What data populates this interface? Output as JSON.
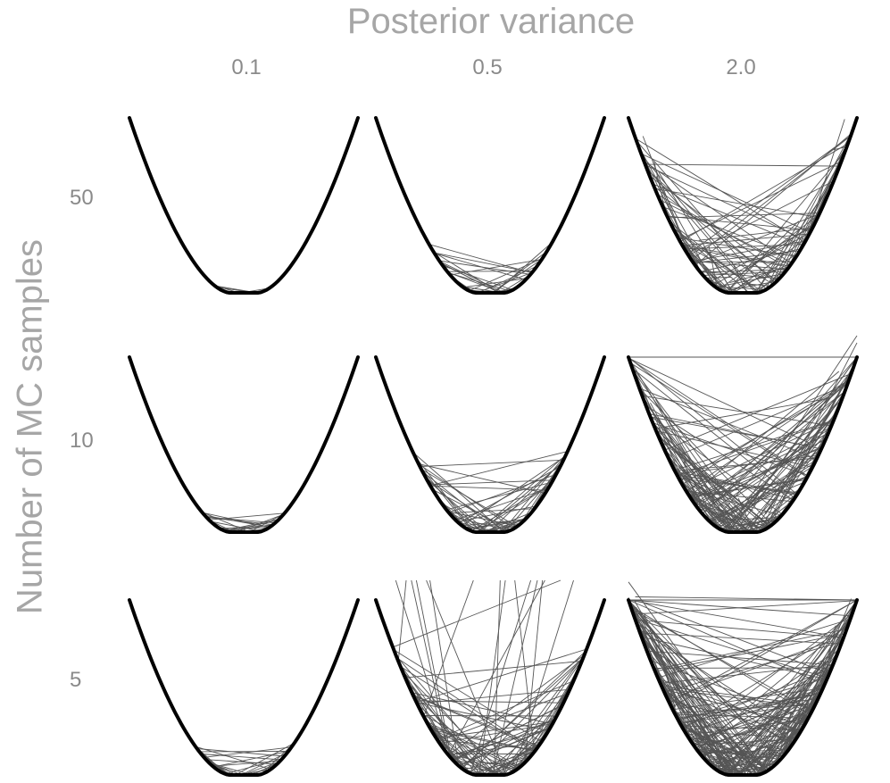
{
  "column_axis": {
    "title": "Posterior variance",
    "labels": [
      "0.1",
      "0.5",
      "2.0"
    ]
  },
  "row_axis": {
    "title": "Number of MC samples",
    "labels": [
      "50",
      "10",
      "5"
    ]
  },
  "colors": {
    "curve": "#000000",
    "lines": "#555555",
    "axis_titles": "#a6a6a6",
    "tick_labels": "#8a8a8a"
  },
  "chart_data": {
    "type": "line",
    "description_of_content": "",
    "panels": [
      {
        "row": "50",
        "col": "0.1",
        "line_count": 20
      },
      {
        "row": "50",
        "col": "0.5",
        "line_count": 45
      },
      {
        "row": "50",
        "col": "2.0",
        "line_count": 110
      },
      {
        "row": "10",
        "col": "0.1",
        "line_count": 30
      },
      {
        "row": "10",
        "col": "0.5",
        "line_count": 80
      },
      {
        "row": "10",
        "col": "2.0",
        "line_count": 170
      },
      {
        "row": "5",
        "col": "0.1",
        "line_count": 40
      },
      {
        "row": "5",
        "col": "0.5",
        "line_count": 140
      },
      {
        "row": "5",
        "col": "2.0",
        "line_count": 260
      }
    ]
  }
}
